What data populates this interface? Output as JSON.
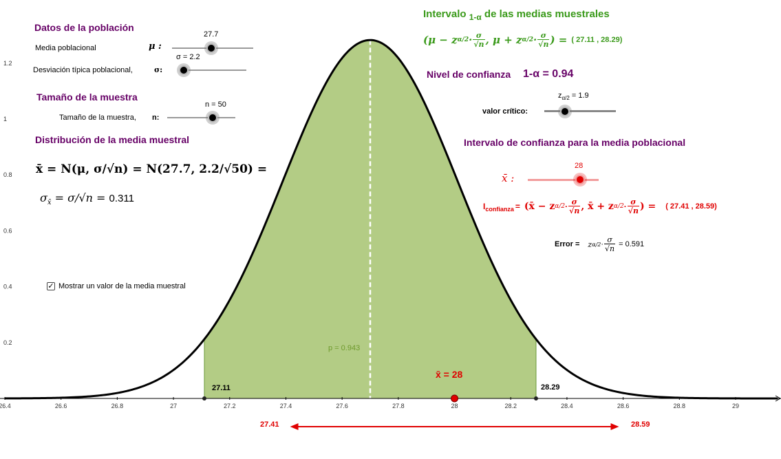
{
  "population": {
    "title": "Datos de la población",
    "mean_label": "Media poblacional",
    "mean_symbol": "μ :",
    "mean_value": "27.7",
    "sd_label": "Desviación típica poblacional,",
    "sd_symbol": "σ:",
    "sd_value": "σ = 2.2"
  },
  "sample": {
    "title": "Tamaño de la muestra",
    "size_label": "Tamaño de la muestra,",
    "size_symbol": "n:",
    "size_value": "n = 50"
  },
  "distribution": {
    "title": "Distribución de la media muestral",
    "formula_lhs": "x̄ = N(μ, σ/√n) = N(27.7, 2.2/√50) =",
    "sigma_expr": "σ",
    "sigma_sub": "x̄",
    "sigma_rest": " = σ/√n = ",
    "sigma_value": "0.311"
  },
  "checkbox": {
    "label": "Mostrar un valor de la media muestral",
    "checked": "✓"
  },
  "interval_means": {
    "title_pre": "Intervalo ",
    "title_sub": "1-α",
    "title_post": " de las medias muestrales",
    "formula_a": "(μ − z",
    "formula_sub": "α/2",
    "formula_b": " · ",
    "sigma": "σ",
    "sqrt_n": "√n",
    "formula_c": ", μ + z",
    "formula_d": ") =",
    "result": "( 27.11 , 28.29)"
  },
  "confidence": {
    "label": "Nivel de confianza",
    "value": "1-α = 0.94",
    "critical_label": "valor crítico:",
    "z_prefix": "z",
    "z_sub": "α/2",
    "z_value": " = 1.9"
  },
  "ci_population": {
    "title": "Intervalo de confianza para la media poblacional",
    "xbar_label": "x̄ :",
    "xbar_value": "28",
    "I_label": "I",
    "I_sub": "confianza",
    "eq": " = ",
    "formula_a": "(x̄ − z",
    "formula_sub": "α/2",
    "formula_b": " · ",
    "sigma": "σ",
    "sqrt_n": "√n",
    "formula_c": ", x̄ + z",
    "formula_d": ") =",
    "result": "( 27.41 , 28.59)",
    "error_label": "Error =",
    "error_z": "z",
    "error_sub": "α/2",
    "error_dot": " · ",
    "error_value": "= 0.591"
  },
  "plot": {
    "p_label": "p = 0.943",
    "xbar_marker": "x̄ = 28",
    "lower_bound": "27.11",
    "upper_bound": "28.29",
    "ci_lower": "27.41",
    "ci_upper": "28.59",
    "x_ticks": [
      "26.4",
      "26.6",
      "26.8",
      "27",
      "27.2",
      "27.4",
      "27.6",
      "27.8",
      "28",
      "28.2",
      "28.4",
      "28.6",
      "28.8",
      "29"
    ],
    "y_ticks": [
      "0.2",
      "0.4",
      "0.6",
      "0.8",
      "1",
      "1.2"
    ]
  },
  "chart_data": {
    "type": "area",
    "mean": 27.7,
    "sd": 0.311,
    "shaded_range": [
      27.11,
      28.29
    ],
    "xlim": [
      26.4,
      29.15
    ],
    "ylim": [
      0,
      1.3
    ],
    "grid": false,
    "fill_color": "#b3cc85",
    "curve_color": "#000000",
    "marker_x": 28,
    "marker_color": "#e00000",
    "ci_range": [
      27.41,
      28.59
    ]
  },
  "colors": {
    "purple": "#660066",
    "green": "#3a9a1a",
    "red": "#e00000",
    "fill": "#b3cc85"
  }
}
